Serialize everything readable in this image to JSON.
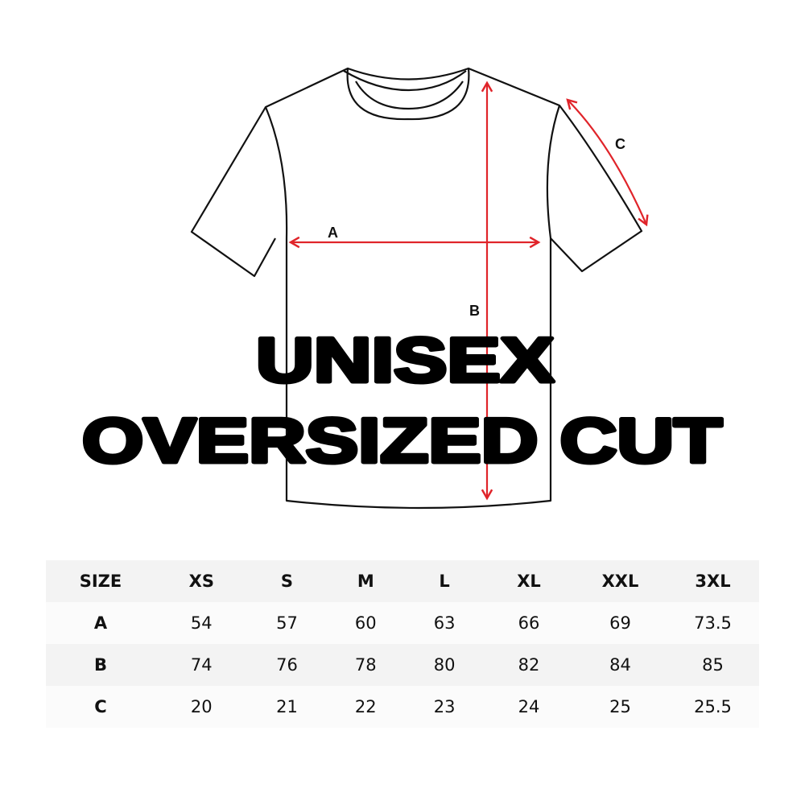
{
  "diagram": {
    "labels": {
      "a": "A",
      "b": "B",
      "c": "C"
    },
    "measure_color": "#e0242a"
  },
  "title": {
    "line1": "UNISEX",
    "line2": "OVERSIZED CUT"
  },
  "size_table": {
    "headers": [
      "SIZE",
      "XS",
      "S",
      "M",
      "L",
      "XL",
      "XXL",
      "3XL"
    ],
    "rows": [
      {
        "label": "A",
        "values": [
          "54",
          "57",
          "60",
          "63",
          "66",
          "69",
          "73.5"
        ]
      },
      {
        "label": "B",
        "values": [
          "74",
          "76",
          "78",
          "80",
          "82",
          "84",
          "85"
        ]
      },
      {
        "label": "C",
        "values": [
          "20",
          "21",
          "22",
          "23",
          "24",
          "25",
          "25.5"
        ]
      }
    ]
  }
}
